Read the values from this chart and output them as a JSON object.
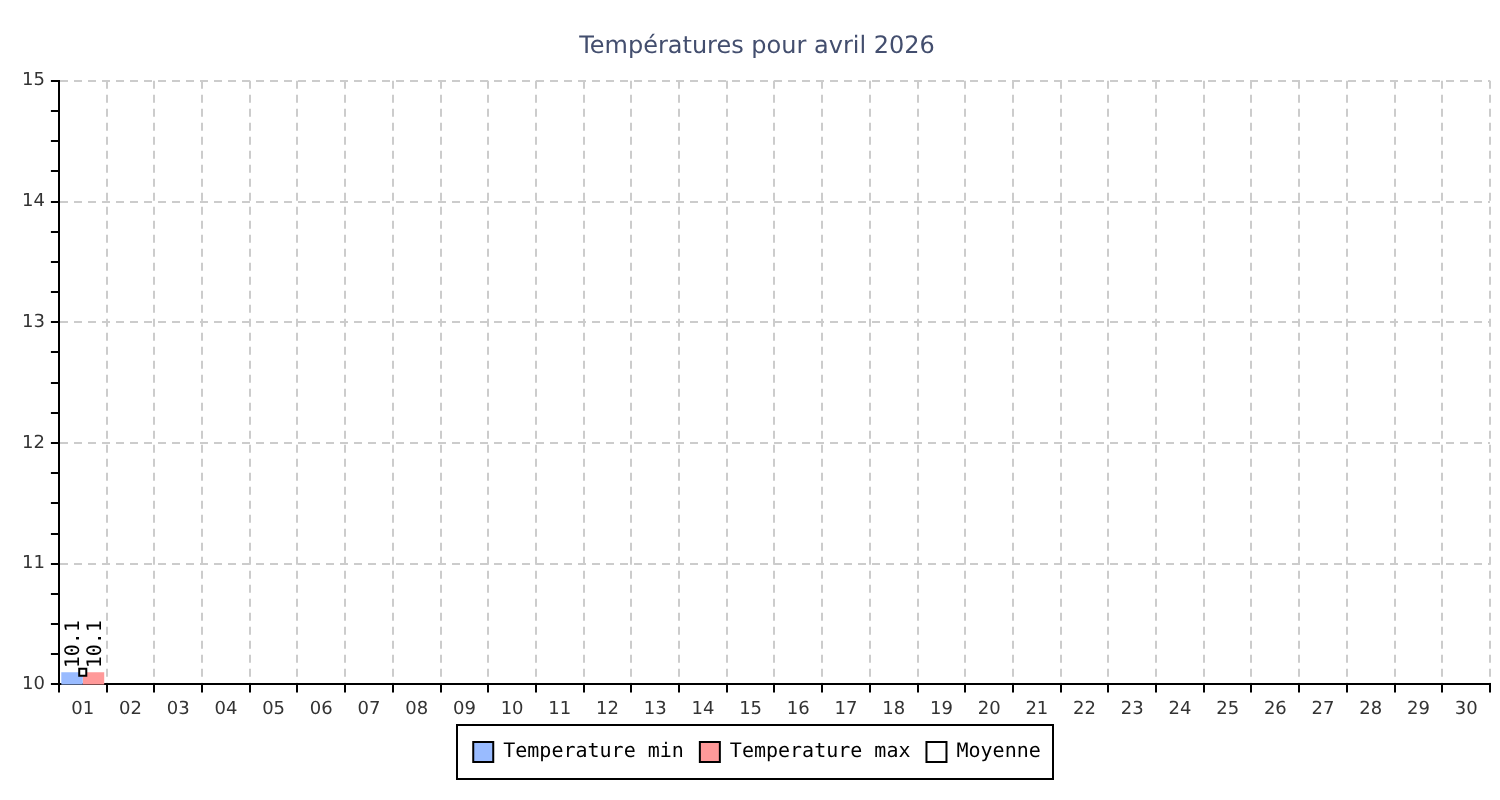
{
  "chart_data": {
    "type": "bar",
    "title": "Températures pour avril 2026",
    "categories": [
      "01",
      "02",
      "03",
      "04",
      "05",
      "06",
      "07",
      "08",
      "09",
      "10",
      "11",
      "12",
      "13",
      "14",
      "15",
      "16",
      "17",
      "18",
      "19",
      "20",
      "21",
      "22",
      "23",
      "24",
      "25",
      "26",
      "27",
      "28",
      "29",
      "30"
    ],
    "series": [
      {
        "name": "Temperature min",
        "color": "#99bbff",
        "values": [
          10.1,
          null,
          null,
          null,
          null,
          null,
          null,
          null,
          null,
          null,
          null,
          null,
          null,
          null,
          null,
          null,
          null,
          null,
          null,
          null,
          null,
          null,
          null,
          null,
          null,
          null,
          null,
          null,
          null,
          null
        ],
        "value_labels": [
          "10.1",
          null,
          null,
          null,
          null,
          null,
          null,
          null,
          null,
          null,
          null,
          null,
          null,
          null,
          null,
          null,
          null,
          null,
          null,
          null,
          null,
          null,
          null,
          null,
          null,
          null,
          null,
          null,
          null,
          null
        ]
      },
      {
        "name": "Temperature max",
        "color": "#ff9999",
        "values": [
          10.1,
          null,
          null,
          null,
          null,
          null,
          null,
          null,
          null,
          null,
          null,
          null,
          null,
          null,
          null,
          null,
          null,
          null,
          null,
          null,
          null,
          null,
          null,
          null,
          null,
          null,
          null,
          null,
          null,
          null
        ],
        "value_labels": [
          "10.1",
          null,
          null,
          null,
          null,
          null,
          null,
          null,
          null,
          null,
          null,
          null,
          null,
          null,
          null,
          null,
          null,
          null,
          null,
          null,
          null,
          null,
          null,
          null,
          null,
          null,
          null,
          null,
          null,
          null
        ]
      },
      {
        "name": "Moyenne",
        "type": "line",
        "color": "#000000",
        "values": [
          10.1,
          null,
          null,
          null,
          null,
          null,
          null,
          null,
          null,
          null,
          null,
          null,
          null,
          null,
          null,
          null,
          null,
          null,
          null,
          null,
          null,
          null,
          null,
          null,
          null,
          null,
          null,
          null,
          null,
          null
        ]
      }
    ],
    "ylim": [
      10,
      15
    ],
    "yticks": [
      10,
      {
        "value": 10.25,
        "label": null
      },
      {
        "value": 10.5,
        "label": null
      },
      {
        "value": 10.75,
        "label": null
      },
      11,
      {
        "value": 11.25,
        "label": null
      },
      {
        "value": 11.5,
        "label": null
      },
      {
        "value": 11.75,
        "label": null
      },
      12,
      {
        "value": 12.25,
        "label": null
      },
      {
        "value": 12.5,
        "label": null
      },
      {
        "value": 12.75,
        "label": null
      },
      13,
      {
        "value": 13.25,
        "label": null
      },
      {
        "value": 13.5,
        "label": null
      },
      {
        "value": 13.75,
        "label": null
      },
      14,
      {
        "value": 14.25,
        "label": null
      },
      {
        "value": 14.5,
        "label": null
      },
      {
        "value": 14.75,
        "label": null
      },
      15
    ],
    "grid": true,
    "legend": "bottom",
    "marker": "square"
  }
}
